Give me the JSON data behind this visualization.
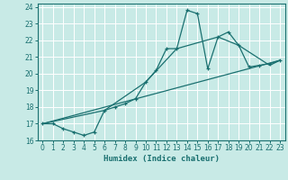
{
  "xlabel": "Humidex (Indice chaleur)",
  "xlim": [
    -0.5,
    23.5
  ],
  "ylim": [
    16,
    24.2
  ],
  "yticks": [
    16,
    17,
    18,
    19,
    20,
    21,
    22,
    23,
    24
  ],
  "xticks": [
    0,
    1,
    2,
    3,
    4,
    5,
    6,
    7,
    8,
    9,
    10,
    11,
    12,
    13,
    14,
    15,
    16,
    17,
    18,
    19,
    20,
    21,
    22,
    23
  ],
  "bg_color": "#c8eae6",
  "grid_color": "#ffffff",
  "line_color": "#1a7070",
  "lines": [
    {
      "x": [
        0,
        1,
        2,
        3,
        4,
        5,
        6,
        7,
        8,
        9,
        10,
        11,
        12,
        13,
        14,
        15,
        16,
        17,
        18,
        19,
        20,
        21,
        22,
        23
      ],
      "y": [
        17.0,
        17.0,
        16.7,
        16.5,
        16.3,
        16.5,
        17.8,
        18.0,
        18.2,
        18.5,
        19.5,
        20.2,
        21.5,
        21.5,
        23.8,
        23.6,
        20.3,
        22.2,
        22.5,
        21.7,
        20.4,
        20.5,
        20.6,
        20.8
      ],
      "marker": "+"
    },
    {
      "x": [
        0,
        6,
        10,
        13,
        17,
        19,
        22,
        23
      ],
      "y": [
        17.0,
        17.8,
        19.5,
        21.5,
        22.2,
        21.7,
        20.5,
        20.8
      ],
      "marker": null
    },
    {
      "x": [
        0,
        23
      ],
      "y": [
        17.0,
        20.8
      ],
      "marker": null
    }
  ]
}
